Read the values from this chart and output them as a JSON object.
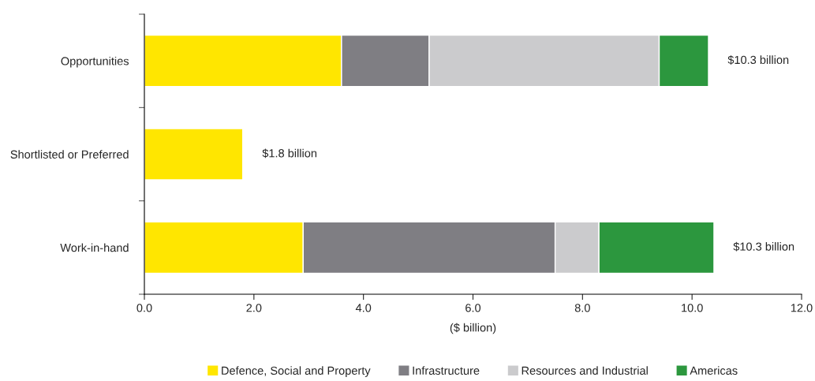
{
  "chart_data": {
    "type": "bar",
    "orientation": "horizontal",
    "stacked": true,
    "categories": [
      "Opportunities",
      "Shortlisted or Preferred",
      "Work-in-hand"
    ],
    "series": [
      {
        "name": "Defence, Social and Property",
        "color": "#ffe600",
        "values": [
          3.6,
          1.8,
          2.9
        ]
      },
      {
        "name": "Infrastructure",
        "color": "#7f7e83",
        "values": [
          1.6,
          null,
          4.6
        ]
      },
      {
        "name": "Resources and Industrial",
        "color": "#cbcbcd",
        "values": [
          4.2,
          null,
          0.8
        ]
      },
      {
        "name": "Americas",
        "color": "#2c973e",
        "values": [
          0.9,
          null,
          2.1
        ]
      }
    ],
    "totals": [
      "$10.3 billion",
      "$1.8 billion",
      "$10.3 billion"
    ],
    "xlabel": "($ billion)",
    "xlim": [
      0,
      12
    ],
    "xticks": [
      {
        "value": 0,
        "label": "0.0"
      },
      {
        "value": 2,
        "label": "2.0"
      },
      {
        "value": 4,
        "label": "4.0"
      },
      {
        "value": 6,
        "label": "6.0"
      },
      {
        "value": 8,
        "label": "8.0"
      },
      {
        "value": 10,
        "label": "10.0"
      },
      {
        "value": 12,
        "label": "12.0"
      }
    ],
    "grid": false,
    "legend": "bottom"
  }
}
